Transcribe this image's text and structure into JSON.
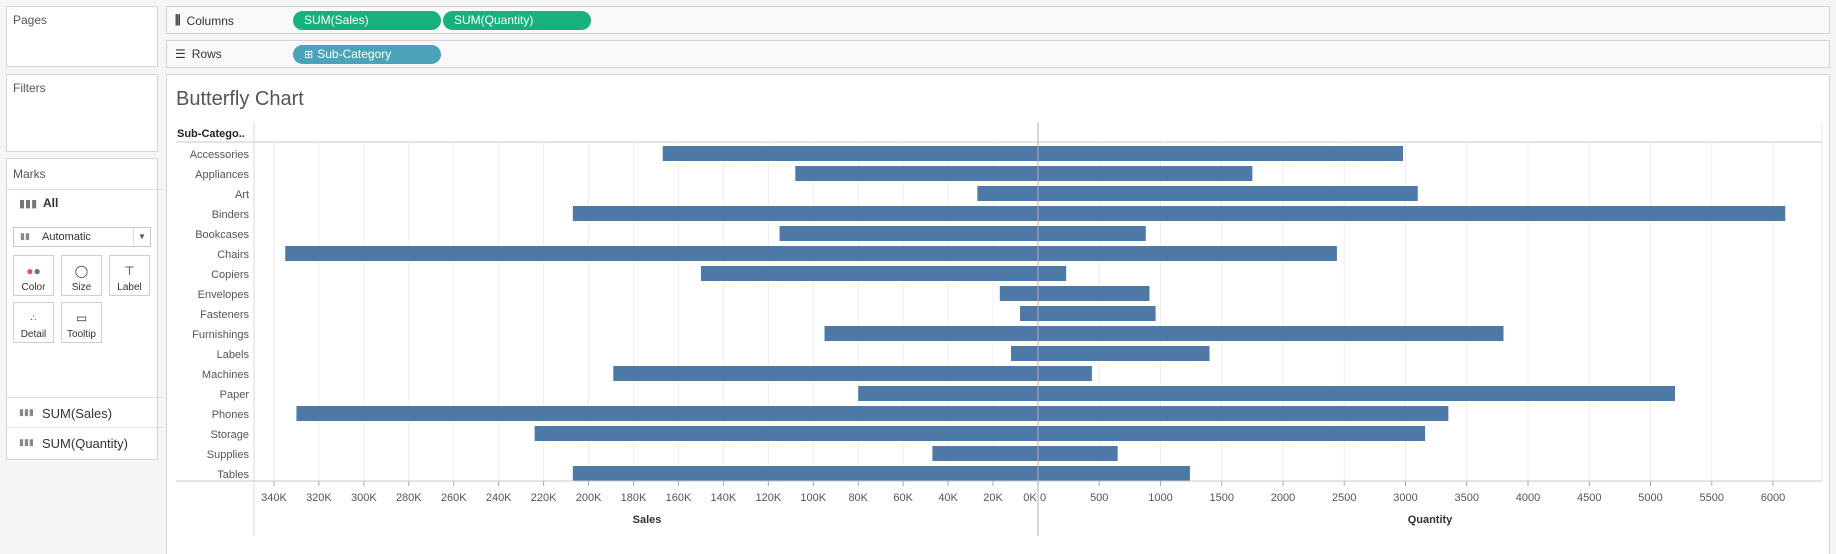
{
  "cards": {
    "pages": "Pages",
    "filters": "Filters",
    "marks": "Marks",
    "marks_all": "All",
    "mark_type": "Automatic",
    "buttons": [
      "Color",
      "Size",
      "Label",
      "Detail",
      "Tooltip"
    ],
    "measures": [
      "SUM(Sales)",
      "SUM(Quantity)"
    ]
  },
  "shelves": {
    "columns_label": "Columns",
    "rows_label": "Rows",
    "columns_pills": [
      "SUM(Sales)",
      "SUM(Quantity)"
    ],
    "rows_pills": [
      "Sub-Category"
    ]
  },
  "view": {
    "title": "Butterfly Chart",
    "row_header": "Sub-Catego.."
  },
  "colors": {
    "bar": "#4e79a7",
    "green_pill": "#17b180",
    "blue_pill": "#4aa3b9"
  },
  "chart_data": {
    "type": "bar",
    "title": "Butterfly Chart",
    "categories": [
      "Accessories",
      "Appliances",
      "Art",
      "Binders",
      "Bookcases",
      "Chairs",
      "Copiers",
      "Envelopes",
      "Fasteners",
      "Furnishings",
      "Labels",
      "Machines",
      "Paper",
      "Phones",
      "Storage",
      "Supplies",
      "Tables"
    ],
    "series": [
      {
        "name": "Sales",
        "direction": "reversed",
        "values": [
          167000,
          108000,
          27000,
          207000,
          115000,
          335000,
          150000,
          17000,
          8000,
          95000,
          12000,
          189000,
          80000,
          330000,
          224000,
          47000,
          207000
        ]
      },
      {
        "name": "Quantity",
        "values": [
          2980,
          1750,
          3100,
          6100,
          880,
          2440,
          230,
          910,
          960,
          3800,
          1400,
          440,
          5200,
          3350,
          3160,
          650,
          1240
        ]
      }
    ],
    "sales_axis": {
      "label": "Sales",
      "ticks": [
        "340K",
        "320K",
        "300K",
        "280K",
        "260K",
        "240K",
        "220K",
        "200K",
        "180K",
        "160K",
        "140K",
        "120K",
        "100K",
        "80K",
        "60K",
        "40K",
        "20K",
        "0K"
      ]
    },
    "quantity_axis": {
      "label": "Quantity",
      "ticks": [
        "0",
        "500",
        "1000",
        "1500",
        "2000",
        "2500",
        "3000",
        "3500",
        "4000",
        "4500",
        "5000",
        "5500",
        "6000"
      ]
    },
    "sales_range": [
      0,
      348000
    ],
    "quantity_range": [
      0,
      6400
    ]
  }
}
